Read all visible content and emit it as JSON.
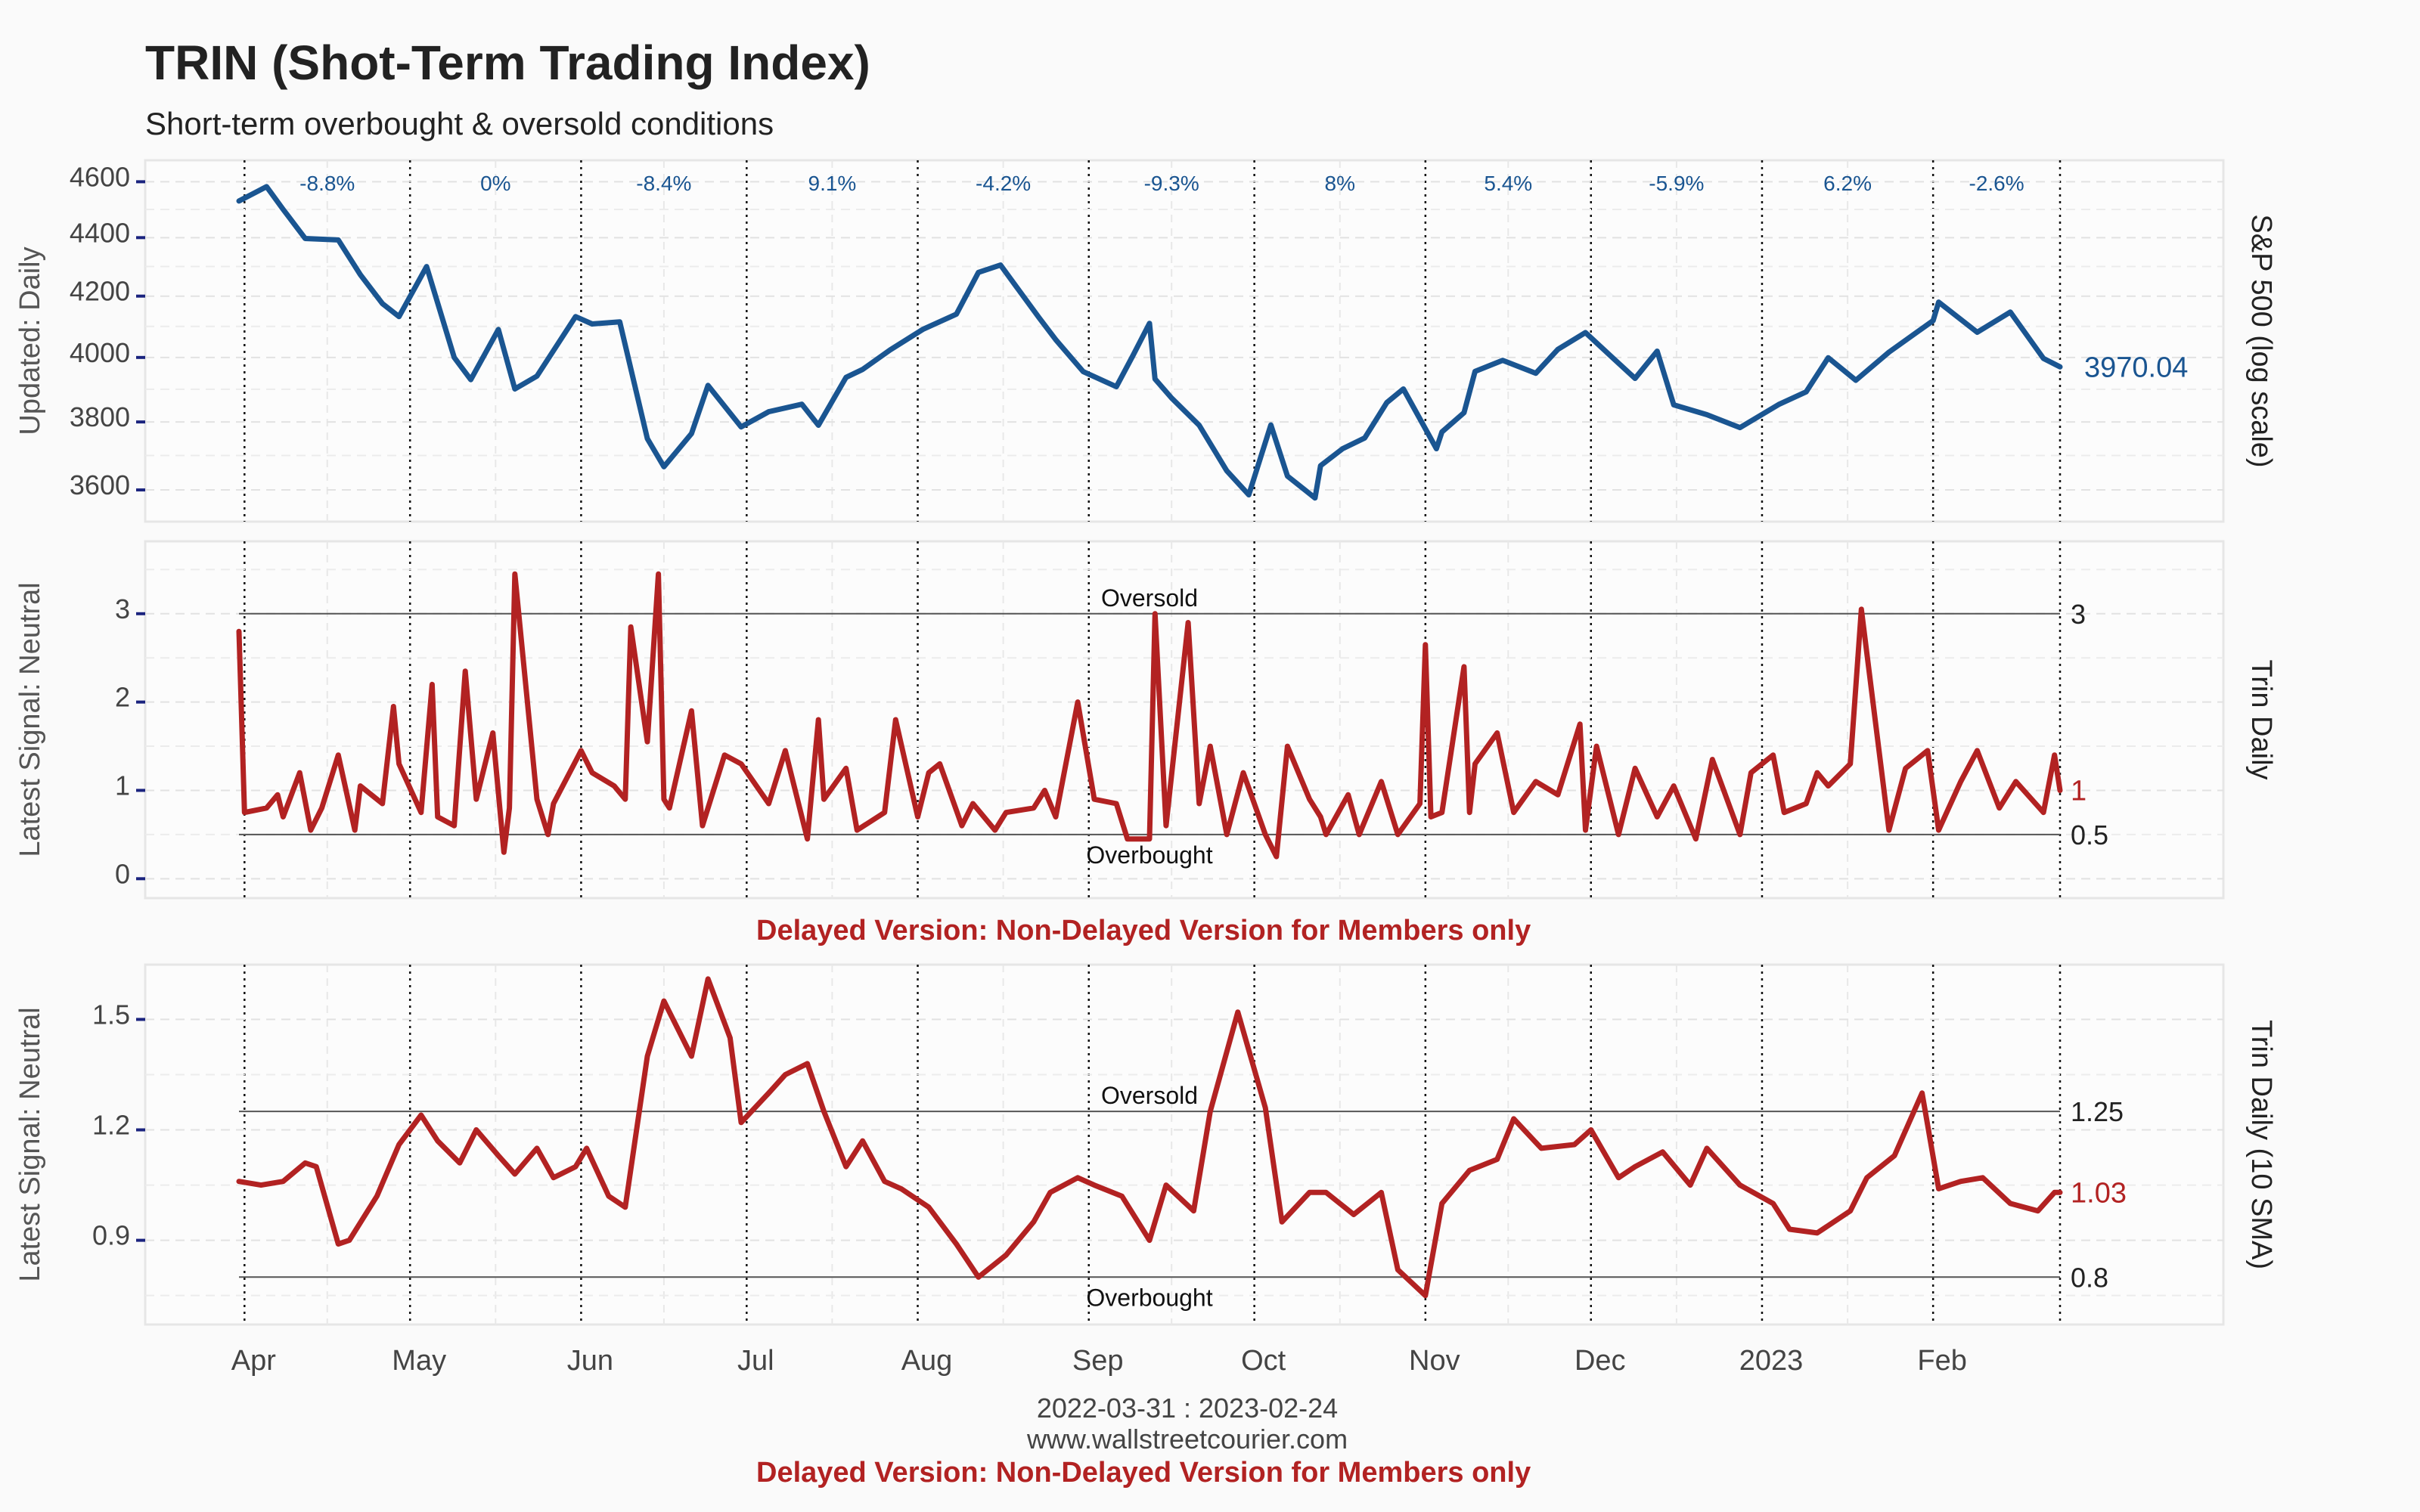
{
  "header": {
    "title": "TRIN (Shot-Term Trading Index)",
    "subtitle": "Short-term overbought & oversold conditions"
  },
  "footer": {
    "date_range": "2022-03-31 : 2023-02-24",
    "website": "www.wallstreetcourier.com",
    "delayed_notice": "Delayed Version: Non-Delayed Version for Members only"
  },
  "colors": {
    "sp500": "#1a5591",
    "trin": "#b22222",
    "text": "#444444"
  },
  "x_axis": {
    "start": "2022-03-31",
    "end": "2023-02-24",
    "ticks": [
      {
        "date": "2022-04-01",
        "label": "Apr"
      },
      {
        "date": "2022-05-01",
        "label": "May"
      },
      {
        "date": "2022-06-01",
        "label": "Jun"
      },
      {
        "date": "2022-07-01",
        "label": "Jul"
      },
      {
        "date": "2022-08-01",
        "label": "Aug"
      },
      {
        "date": "2022-09-01",
        "label": "Sep"
      },
      {
        "date": "2022-10-01",
        "label": "Oct"
      },
      {
        "date": "2022-11-01",
        "label": "Nov"
      },
      {
        "date": "2022-12-01",
        "label": "Dec"
      },
      {
        "date": "2023-01-01",
        "label": "2023"
      },
      {
        "date": "2023-02-01",
        "label": "Feb"
      }
    ]
  },
  "chart_data": [
    {
      "type": "line",
      "ylabel_left": "Updated: Daily",
      "ylabel_right": "S&P 500 (log scale)",
      "log_scale": true,
      "ylim": [
        3540,
        4640
      ],
      "yticks": [
        3600,
        3800,
        4000,
        4200,
        4400,
        4600
      ],
      "last_value_label": "3970.04",
      "monthly_changes": [
        "-8.8%",
        "0%",
        "-8.4%",
        "9.1%",
        "-4.2%",
        "-9.3%",
        "8%",
        "5.4%",
        "-5.9%",
        "6.2%",
        "-2.6%"
      ],
      "series": [
        {
          "x": [
            "2022-03-31",
            "2022-04-05",
            "2022-04-08",
            "2022-04-12",
            "2022-04-18",
            "2022-04-22",
            "2022-04-26",
            "2022-04-29",
            "2022-05-04",
            "2022-05-09",
            "2022-05-12",
            "2022-05-17",
            "2022-05-20",
            "2022-05-24",
            "2022-05-31",
            "2022-06-03",
            "2022-06-08",
            "2022-06-13",
            "2022-06-16",
            "2022-06-21",
            "2022-06-24",
            "2022-06-30",
            "2022-07-05",
            "2022-07-11",
            "2022-07-14",
            "2022-07-19",
            "2022-07-22",
            "2022-07-27",
            "2022-08-02",
            "2022-08-08",
            "2022-08-12",
            "2022-08-16",
            "2022-08-19",
            "2022-08-23",
            "2022-08-26",
            "2022-08-31",
            "2022-09-06",
            "2022-09-09",
            "2022-09-12",
            "2022-09-13",
            "2022-09-16",
            "2022-09-21",
            "2022-09-26",
            "2022-09-30",
            "2022-10-04",
            "2022-10-07",
            "2022-10-12",
            "2022-10-13",
            "2022-10-17",
            "2022-10-21",
            "2022-10-25",
            "2022-10-28",
            "2022-11-03",
            "2022-11-04",
            "2022-11-08",
            "2022-11-10",
            "2022-11-15",
            "2022-11-21",
            "2022-11-25",
            "2022-11-30",
            "2022-12-05",
            "2022-12-09",
            "2022-12-13",
            "2022-12-16",
            "2022-12-22",
            "2022-12-28",
            "2023-01-04",
            "2023-01-09",
            "2023-01-13",
            "2023-01-18",
            "2023-01-24",
            "2023-02-01",
            "2023-02-02",
            "2023-02-09",
            "2023-02-15",
            "2023-02-21",
            "2023-02-24"
          ],
          "values": [
            4530,
            4582,
            4500,
            4397,
            4392,
            4272,
            4175,
            4132,
            4300,
            4000,
            3930,
            4090,
            3901,
            3941,
            4132,
            4108,
            4115,
            3750,
            3667,
            3765,
            3912,
            3785,
            3831,
            3854,
            3790,
            3937,
            3962,
            4024,
            4091,
            4140,
            4280,
            4305,
            4228,
            4128,
            4057,
            3955,
            3908,
            4006,
            4110,
            3932,
            3873,
            3790,
            3655,
            3586,
            3791,
            3640,
            3577,
            3670,
            3720,
            3752,
            3859,
            3901,
            3720,
            3770,
            3828,
            3956,
            3991,
            3950,
            4026,
            4080,
            3998,
            3934,
            4020,
            3852,
            3822,
            3783,
            3853,
            3892,
            3999,
            3928,
            4017,
            4119,
            4180,
            4081,
            4147,
            3997,
            3970
          ]
        }
      ]
    },
    {
      "type": "line",
      "ylabel_left": "Latest Signal: Neutral",
      "ylabel_right": "Trin Daily",
      "ylim": [
        -0.1,
        3.7
      ],
      "yticks": [
        0,
        1,
        2,
        3
      ],
      "thresholds": [
        {
          "value": 3,
          "label": "Oversold",
          "value_label": "3"
        },
        {
          "value": 0.5,
          "label": "Overbought",
          "value_label": "0.5"
        }
      ],
      "last_value_label": "1",
      "series": [
        {
          "x": [
            "2022-03-31",
            "2022-04-01",
            "2022-04-05",
            "2022-04-07",
            "2022-04-08",
            "2022-04-11",
            "2022-04-13",
            "2022-04-15",
            "2022-04-18",
            "2022-04-21",
            "2022-04-22",
            "2022-04-26",
            "2022-04-28",
            "2022-04-29",
            "2022-05-03",
            "2022-05-05",
            "2022-05-06",
            "2022-05-09",
            "2022-05-11",
            "2022-05-13",
            "2022-05-16",
            "2022-05-18",
            "2022-05-19",
            "2022-05-20",
            "2022-05-24",
            "2022-05-26",
            "2022-05-27",
            "2022-06-01",
            "2022-06-03",
            "2022-06-07",
            "2022-06-09",
            "2022-06-10",
            "2022-06-13",
            "2022-06-15",
            "2022-06-16",
            "2022-06-17",
            "2022-06-21",
            "2022-06-23",
            "2022-06-27",
            "2022-06-30",
            "2022-07-05",
            "2022-07-08",
            "2022-07-12",
            "2022-07-14",
            "2022-07-15",
            "2022-07-19",
            "2022-07-21",
            "2022-07-26",
            "2022-07-28",
            "2022-08-01",
            "2022-08-03",
            "2022-08-05",
            "2022-08-09",
            "2022-08-11",
            "2022-08-15",
            "2022-08-17",
            "2022-08-22",
            "2022-08-24",
            "2022-08-26",
            "2022-08-30",
            "2022-09-02",
            "2022-09-06",
            "2022-09-08",
            "2022-09-12",
            "2022-09-13",
            "2022-09-15",
            "2022-09-19",
            "2022-09-21",
            "2022-09-23",
            "2022-09-26",
            "2022-09-29",
            "2022-10-03",
            "2022-10-05",
            "2022-10-07",
            "2022-10-11",
            "2022-10-13",
            "2022-10-14",
            "2022-10-18",
            "2022-10-20",
            "2022-10-24",
            "2022-10-27",
            "2022-10-31",
            "2022-11-01",
            "2022-11-02",
            "2022-11-04",
            "2022-11-08",
            "2022-11-09",
            "2022-11-10",
            "2022-11-14",
            "2022-11-17",
            "2022-11-21",
            "2022-11-25",
            "2022-11-29",
            "2022-11-30",
            "2022-12-02",
            "2022-12-06",
            "2022-12-09",
            "2022-12-13",
            "2022-12-16",
            "2022-12-20",
            "2022-12-23",
            "2022-12-28",
            "2022-12-30",
            "2023-01-03",
            "2023-01-05",
            "2023-01-09",
            "2023-01-11",
            "2023-01-13",
            "2023-01-17",
            "2023-01-19",
            "2023-01-24",
            "2023-01-27",
            "2023-01-31",
            "2023-02-02",
            "2023-02-06",
            "2023-02-09",
            "2023-02-13",
            "2023-02-16",
            "2023-02-21",
            "2023-02-23",
            "2023-02-24"
          ],
          "values": [
            2.8,
            0.75,
            0.8,
            0.95,
            0.7,
            1.2,
            0.55,
            0.8,
            1.4,
            0.55,
            1.05,
            0.85,
            1.95,
            1.3,
            0.75,
            2.2,
            0.7,
            0.6,
            2.35,
            0.9,
            1.65,
            0.3,
            0.8,
            3.45,
            0.9,
            0.5,
            0.85,
            1.45,
            1.2,
            1.05,
            0.9,
            2.85,
            1.55,
            3.45,
            0.9,
            0.8,
            1.9,
            0.6,
            1.4,
            1.3,
            0.85,
            1.45,
            0.45,
            1.8,
            0.9,
            1.25,
            0.55,
            0.75,
            1.8,
            0.7,
            1.2,
            1.3,
            0.6,
            0.85,
            0.55,
            0.75,
            0.8,
            1.0,
            0.7,
            2.0,
            0.9,
            0.85,
            0.45,
            0.45,
            3.0,
            0.6,
            2.9,
            0.85,
            1.5,
            0.5,
            1.2,
            0.5,
            0.25,
            1.5,
            0.9,
            0.7,
            0.5,
            0.95,
            0.5,
            1.1,
            0.5,
            0.85,
            2.65,
            0.7,
            0.75,
            2.4,
            0.75,
            1.3,
            1.65,
            0.75,
            1.1,
            0.95,
            1.75,
            0.55,
            1.5,
            0.5,
            1.25,
            0.7,
            1.05,
            0.45,
            1.35,
            0.5,
            1.2,
            1.4,
            0.75,
            0.85,
            1.2,
            1.05,
            1.3,
            3.05,
            0.55,
            1.25,
            1.45,
            0.55,
            1.1,
            1.45,
            0.8,
            1.1,
            0.75,
            1.4,
            1.0
          ]
        }
      ]
    },
    {
      "type": "line",
      "ylabel_left": "Latest Signal: Neutral",
      "ylabel_right": "Trin Daily (10 SMA)",
      "ylim": [
        0.7,
        1.62
      ],
      "yticks": [
        0.9,
        1.2,
        1.5
      ],
      "ytick_labels": [
        "0.9",
        "1.2",
        "1.5"
      ],
      "thresholds": [
        {
          "value": 1.25,
          "label": "Oversold",
          "value_label": "1.25"
        },
        {
          "value": 0.8,
          "label": "Overbought",
          "value_label": "0.8"
        }
      ],
      "last_value_label": "1.03",
      "series": [
        {
          "x": [
            "2022-03-31",
            "2022-04-04",
            "2022-04-08",
            "2022-04-12",
            "2022-04-14",
            "2022-04-18",
            "2022-04-20",
            "2022-04-25",
            "2022-04-29",
            "2022-05-03",
            "2022-05-06",
            "2022-05-10",
            "2022-05-13",
            "2022-05-17",
            "2022-05-20",
            "2022-05-24",
            "2022-05-27",
            "2022-05-31",
            "2022-06-02",
            "2022-06-06",
            "2022-06-09",
            "2022-06-13",
            "2022-06-16",
            "2022-06-21",
            "2022-06-24",
            "2022-06-28",
            "2022-06-30",
            "2022-07-05",
            "2022-07-08",
            "2022-07-12",
            "2022-07-15",
            "2022-07-19",
            "2022-07-22",
            "2022-07-26",
            "2022-07-29",
            "2022-08-03",
            "2022-08-08",
            "2022-08-12",
            "2022-08-17",
            "2022-08-22",
            "2022-08-25",
            "2022-08-30",
            "2022-09-02",
            "2022-09-07",
            "2022-09-12",
            "2022-09-15",
            "2022-09-20",
            "2022-09-23",
            "2022-09-28",
            "2022-10-03",
            "2022-10-06",
            "2022-10-11",
            "2022-10-14",
            "2022-10-19",
            "2022-10-24",
            "2022-10-27",
            "2022-11-01",
            "2022-11-04",
            "2022-11-09",
            "2022-11-14",
            "2022-11-17",
            "2022-11-22",
            "2022-11-28",
            "2022-12-01",
            "2022-12-06",
            "2022-12-09",
            "2022-12-14",
            "2022-12-19",
            "2022-12-22",
            "2022-12-28",
            "2023-01-03",
            "2023-01-06",
            "2023-01-11",
            "2023-01-17",
            "2023-01-20",
            "2023-01-25",
            "2023-01-30",
            "2023-02-02",
            "2023-02-06",
            "2023-02-10",
            "2023-02-15",
            "2023-02-20",
            "2023-02-23",
            "2023-02-24"
          ],
          "values": [
            1.06,
            1.05,
            1.06,
            1.11,
            1.1,
            0.89,
            0.9,
            1.02,
            1.16,
            1.24,
            1.17,
            1.11,
            1.2,
            1.13,
            1.08,
            1.15,
            1.07,
            1.1,
            1.15,
            1.02,
            0.99,
            1.4,
            1.55,
            1.4,
            1.61,
            1.45,
            1.22,
            1.3,
            1.35,
            1.38,
            1.25,
            1.1,
            1.17,
            1.06,
            1.04,
            0.99,
            0.89,
            0.8,
            0.86,
            0.95,
            1.03,
            1.07,
            1.05,
            1.02,
            0.9,
            1.05,
            0.98,
            1.25,
            1.52,
            1.26,
            0.95,
            1.03,
            1.03,
            0.97,
            1.03,
            0.82,
            0.75,
            1.0,
            1.09,
            1.12,
            1.23,
            1.15,
            1.16,
            1.2,
            1.07,
            1.1,
            1.14,
            1.05,
            1.15,
            1.05,
            1.0,
            0.93,
            0.92,
            0.98,
            1.07,
            1.13,
            1.3,
            1.04,
            1.06,
            1.07,
            1.0,
            0.98,
            1.03,
            1.03
          ]
        }
      ]
    }
  ]
}
